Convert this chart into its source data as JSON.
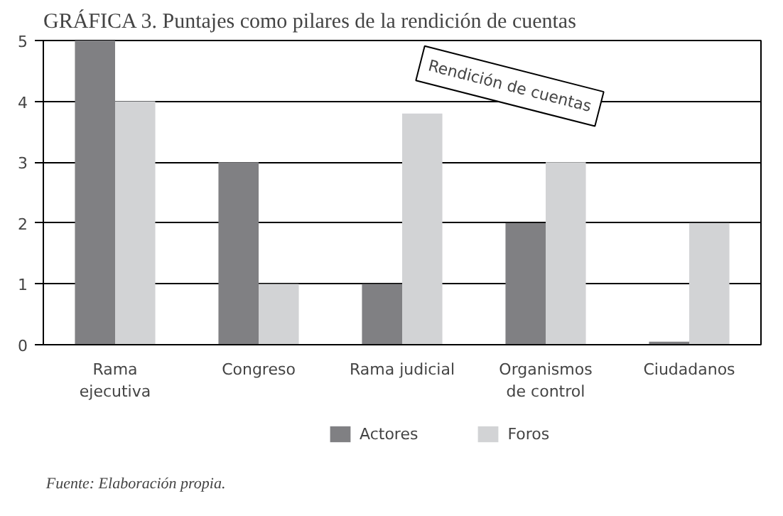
{
  "chart_data": {
    "type": "bar",
    "title": "GRÁFICA 3. Puntajes como pilares de la rendición de cuentas",
    "categories": [
      "Rama\nejecutiva",
      "Congreso",
      "Rama judicial",
      "Organismos\nde control",
      "Ciudadanos"
    ],
    "series": [
      {
        "name": "Actores",
        "color": "#808083",
        "values": [
          5,
          3,
          1,
          2,
          0.05
        ]
      },
      {
        "name": "Foros",
        "color": "#d2d3d5",
        "values": [
          4,
          1,
          3.8,
          3,
          2
        ]
      }
    ],
    "ylim": [
      0,
      5
    ],
    "yticks": [
      0,
      1,
      2,
      3,
      4,
      5
    ],
    "grid": "y",
    "legend": "bottom",
    "annotations": [
      "Rendición de cuentas",
      "Fuente: Elaboración propia."
    ]
  }
}
